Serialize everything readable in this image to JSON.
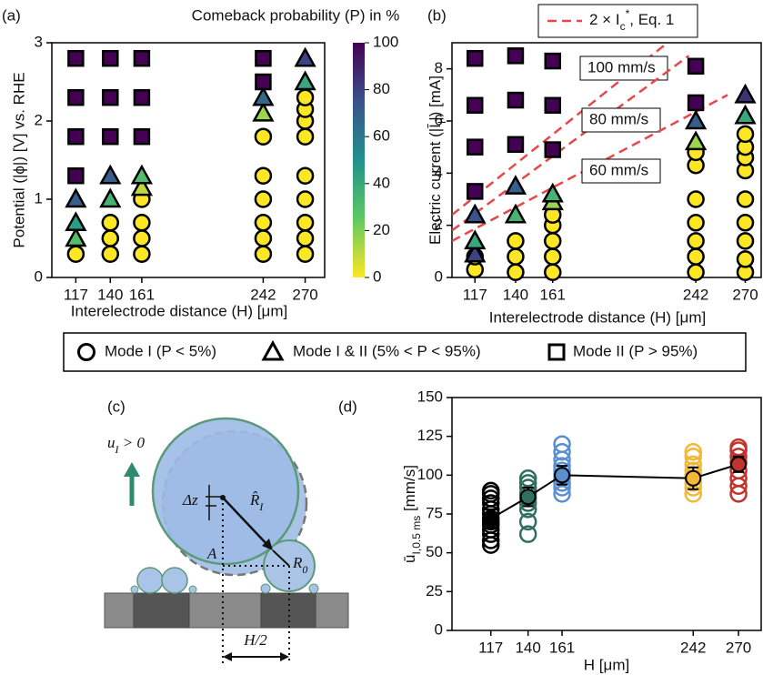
{
  "chart_data": [
    {
      "type": "scatter",
      "panel": "(a)",
      "ylabel": "Potential (|ϕ|) [V] vs. RHE",
      "xlabel": "Interelectrode distance (H) [μm]",
      "xlim": [
        101,
        283
      ],
      "ylim": [
        0,
        3
      ],
      "xticks": [
        117,
        140,
        161,
        242,
        270
      ],
      "yticks": [
        0,
        1,
        2,
        3
      ],
      "colorbar": {
        "label": "Comeback probability (P) in %",
        "lim": [
          0,
          100
        ],
        "ticks": [
          0,
          20,
          40,
          60,
          80,
          100
        ],
        "colormap": "viridis_r"
      },
      "series": [
        {
          "name": "Mode I (P < 5%)",
          "marker": "circle",
          "x": [
            117,
            140,
            140,
            140,
            161,
            161,
            161,
            161,
            242,
            242,
            242,
            242,
            242,
            242,
            270,
            270,
            270,
            270,
            270,
            270,
            270,
            270,
            270
          ],
          "y": [
            0.3,
            0.3,
            0.5,
            0.7,
            0.3,
            0.5,
            0.7,
            1.0,
            0.3,
            0.5,
            0.7,
            1.0,
            1.3,
            1.8,
            0.3,
            0.5,
            0.7,
            1.0,
            1.3,
            1.8,
            2.0,
            2.15,
            2.3
          ],
          "p": [
            0,
            0,
            0,
            0,
            0,
            0,
            0,
            0,
            0,
            0,
            0,
            0,
            0,
            0,
            0,
            0,
            0,
            0,
            0,
            0,
            0,
            0,
            0
          ]
        },
        {
          "name": "Mode I & II (5% < P < 95%)",
          "marker": "triangle",
          "x": [
            117,
            117,
            117,
            140,
            140,
            161,
            161,
            242,
            242,
            270,
            270
          ],
          "y": [
            0.5,
            0.7,
            1.0,
            1.0,
            1.3,
            1.15,
            1.3,
            2.1,
            2.3,
            2.5,
            2.8
          ],
          "p": [
            30,
            45,
            70,
            35,
            70,
            10,
            30,
            15,
            65,
            40,
            80
          ]
        },
        {
          "name": "Mode II (P > 95%)",
          "marker": "square",
          "x": [
            117,
            117,
            117,
            117,
            140,
            140,
            140,
            161,
            161,
            161,
            242,
            242
          ],
          "y": [
            1.3,
            1.8,
            2.3,
            2.8,
            1.8,
            2.3,
            2.8,
            1.8,
            2.3,
            2.8,
            2.5,
            2.8
          ],
          "p": [
            100,
            100,
            100,
            100,
            100,
            100,
            100,
            100,
            100,
            100,
            100,
            100
          ]
        }
      ]
    },
    {
      "type": "scatter",
      "panel": "(b)",
      "ylabel": [
        "Electric current (|",
        "Ī",
        {
          "sub": "I"
        },
        "|) [mA]"
      ],
      "xlabel": "Interelectrode distance (H) [μm]",
      "xlim": [
        104,
        279
      ],
      "ylim": [
        0,
        9
      ],
      "xticks": [
        117,
        140,
        161,
        242,
        270
      ],
      "yticks": [
        0,
        2,
        4,
        6,
        8
      ],
      "colormap": "viridis_r",
      "clim": [
        0,
        100
      ],
      "line_legend": [
        "2 × ",
        "I",
        {
          "sub": "c"
        },
        {
          "sup": "*"
        },
        ", Eq. 1"
      ],
      "line_color": "#e8474a",
      "lines": [
        {
          "name": "100 mm/s",
          "x": [
            104,
            226
          ],
          "y": [
            2.4,
            9
          ]
        },
        {
          "name": "80 mm/s",
          "x": [
            104,
            238
          ],
          "y": [
            1.8,
            8.5
          ]
        },
        {
          "name": "60 mm/s",
          "x": [
            104,
            260
          ],
          "y": [
            1.4,
            7.0
          ]
        }
      ],
      "series": [
        {
          "marker": "circle",
          "x": [
            117,
            117,
            140,
            140,
            140,
            161,
            161,
            161,
            161,
            161,
            242,
            242,
            242,
            242,
            242,
            242,
            242,
            270,
            270,
            270,
            270,
            270,
            270,
            270,
            270,
            270
          ],
          "y": [
            0.3,
            0.8,
            0.2,
            0.8,
            1.4,
            0.2,
            0.8,
            1.4,
            2.0,
            2.4,
            0.2,
            0.8,
            1.4,
            2.1,
            3.0,
            4.3,
            4.8,
            0.2,
            0.7,
            1.4,
            2.1,
            3.0,
            4.1,
            4.6,
            5.0,
            5.5
          ],
          "p": [
            0,
            0,
            0,
            0,
            0,
            0,
            0,
            0,
            0,
            0,
            0,
            0,
            0,
            0,
            0,
            0,
            0,
            0,
            0,
            0,
            0,
            0,
            0,
            0,
            0,
            0
          ]
        },
        {
          "marker": "triangle",
          "x": [
            117,
            117,
            117,
            140,
            140,
            161,
            161,
            242,
            242,
            270,
            270
          ],
          "y": [
            0.9,
            1.4,
            2.4,
            2.4,
            3.5,
            2.9,
            3.2,
            5.2,
            6.0,
            6.2,
            7.0
          ],
          "p": [
            80,
            40,
            75,
            35,
            70,
            15,
            35,
            15,
            70,
            40,
            85
          ]
        },
        {
          "marker": "square",
          "x": [
            117,
            117,
            117,
            117,
            140,
            140,
            140,
            161,
            161,
            161,
            242,
            242
          ],
          "y": [
            3.3,
            5.0,
            6.6,
            8.4,
            5.1,
            6.8,
            8.5,
            4.9,
            6.6,
            8.3,
            6.7,
            8.1
          ],
          "p": [
            100,
            100,
            100,
            100,
            100,
            100,
            100,
            100,
            100,
            100,
            100,
            100
          ]
        }
      ]
    },
    {
      "type": "strip",
      "panel": "(d)",
      "ylabel": [
        "ū",
        {
          "sub": "I,0.5 ms"
        },
        "  [mm/s]"
      ],
      "xlabel": "H [μm]",
      "xlim": [
        93,
        284
      ],
      "ylim": [
        0,
        150
      ],
      "xticks": [
        117,
        140,
        161,
        242,
        270
      ],
      "yticks": [
        0,
        25,
        50,
        75,
        100,
        125,
        150
      ],
      "series": [
        {
          "color": "#000000",
          "x": 117,
          "values": [
            55,
            58,
            62,
            65,
            68,
            70,
            72,
            75,
            78,
            82,
            85,
            88,
            90
          ]
        },
        {
          "color": "#2f6f5f",
          "x": 140,
          "values": [
            62,
            70,
            78,
            82,
            85,
            88,
            92,
            95,
            98
          ]
        },
        {
          "color": "#5a8fd0",
          "x": 161,
          "values": [
            88,
            92,
            95,
            98,
            100,
            103,
            106,
            110,
            115,
            120
          ]
        },
        {
          "color": "#f2b934",
          "x": 242,
          "values": [
            88,
            92,
            95,
            98,
            100,
            103,
            107,
            112,
            115
          ]
        },
        {
          "color": "#c0342d",
          "x": 270,
          "values": [
            88,
            93,
            98,
            103,
            108,
            112,
            116,
            118
          ]
        }
      ],
      "mean": {
        "x": [
          117,
          140,
          161,
          242,
          270
        ],
        "values": [
          72,
          86,
          100,
          98,
          107
        ],
        "errors": [
          6,
          6,
          6,
          7,
          5
        ]
      }
    }
  ],
  "diagram": {
    "panel": "(c)",
    "labels": {
      "velocity": [
        "u",
        {
          "sub": "I"
        },
        " > 0"
      ],
      "dz": "Δz",
      "r_hat": [
        "R̂",
        {
          "sub": "I"
        }
      ],
      "a": "A",
      "r0": [
        "R",
        {
          "sub": "0"
        }
      ],
      "half_h": "H/2"
    }
  }
}
